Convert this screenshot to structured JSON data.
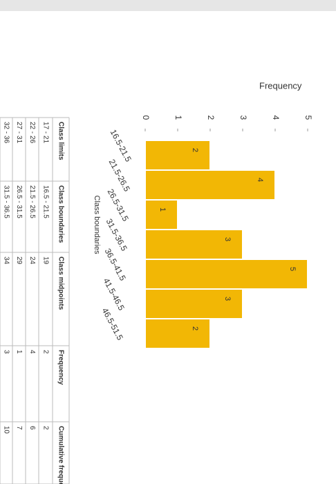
{
  "chart_data": {
    "type": "bar",
    "ylabel": "Frequency",
    "xlabel": "Class boundaries",
    "categories": [
      "16.5-21.5",
      "21.5-26.5",
      "26.5-31.5",
      "31.5-36.5",
      "36.5-41.5",
      "41.5-46.5",
      "46.5-51.5"
    ],
    "values": [
      2,
      4,
      1,
      3,
      5,
      3,
      2
    ],
    "color": "#f2b705",
    "ylim": [
      0,
      5
    ],
    "yticks": [
      0,
      1,
      2,
      3,
      4,
      5
    ]
  },
  "table": {
    "headers": [
      "Class limits",
      "Class boundaries",
      "Class midpoints",
      "Frequency",
      "Cumulative frequency"
    ],
    "rows": [
      [
        "17 - 21",
        "16.5 - 21.5",
        "19",
        "2",
        "2"
      ],
      [
        "22 - 26",
        "21.5 - 26.5",
        "24",
        "4",
        "6"
      ],
      [
        "27 - 31",
        "26.5 - 31.5",
        "29",
        "1",
        "7"
      ],
      [
        "32 - 36",
        "31.5 - 36.5",
        "34",
        "3",
        "10"
      ]
    ]
  }
}
